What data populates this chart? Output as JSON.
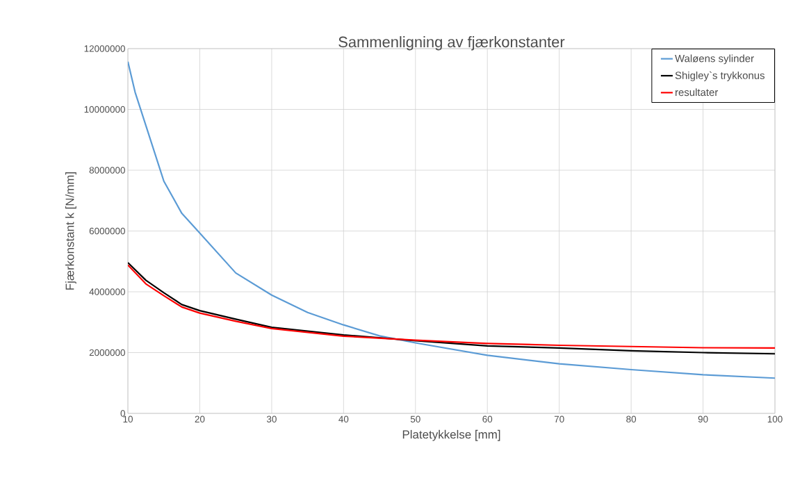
{
  "chart_data": {
    "type": "line",
    "title": "Sammenligning av fjærkonstanter",
    "xlabel": "Platetykkelse [mm]",
    "ylabel": "Fjærkonstant k [N/mm]",
    "xlim": [
      10,
      100
    ],
    "xticks": [
      10,
      20,
      30,
      40,
      50,
      60,
      70,
      80,
      90,
      100
    ],
    "ylim": [
      0,
      12000000
    ],
    "yticks": [
      0,
      2000000,
      4000000,
      6000000,
      8000000,
      10000000,
      12000000
    ],
    "grid": true,
    "legend": "top right",
    "marker": "none",
    "line_style": "solid",
    "series": [
      {
        "name": "Waløens sylinder",
        "color": "#5b9bd5",
        "x": [
          10,
          11,
          12.5,
          15,
          17.5,
          20,
          25,
          30,
          35,
          40,
          45,
          50,
          60,
          70,
          80,
          90,
          100
        ],
        "values": [
          11570000,
          10570000,
          9470000,
          7640000,
          6580000,
          5930000,
          4620000,
          3890000,
          3320000,
          2910000,
          2550000,
          2320000,
          1910000,
          1630000,
          1440000,
          1270000,
          1160000
        ]
      },
      {
        "name": "Shigley`s trykkonus",
        "color": "#000000",
        "x": [
          10,
          12.5,
          15,
          17.5,
          20,
          25,
          30,
          40,
          50,
          60,
          70,
          80,
          90,
          100
        ],
        "values": [
          4960000,
          4380000,
          3970000,
          3580000,
          3380000,
          3100000,
          2830000,
          2580000,
          2390000,
          2220000,
          2150000,
          2060000,
          2000000,
          1960000
        ]
      },
      {
        "name": "resultater",
        "color": "#ff0000",
        "x": [
          10,
          12.5,
          15,
          17.5,
          20,
          25,
          30,
          40,
          50,
          60,
          70,
          80,
          90,
          100
        ],
        "values": [
          4880000,
          4260000,
          3870000,
          3500000,
          3300000,
          3030000,
          2790000,
          2540000,
          2410000,
          2300000,
          2240000,
          2200000,
          2160000,
          2150000
        ]
      }
    ]
  }
}
